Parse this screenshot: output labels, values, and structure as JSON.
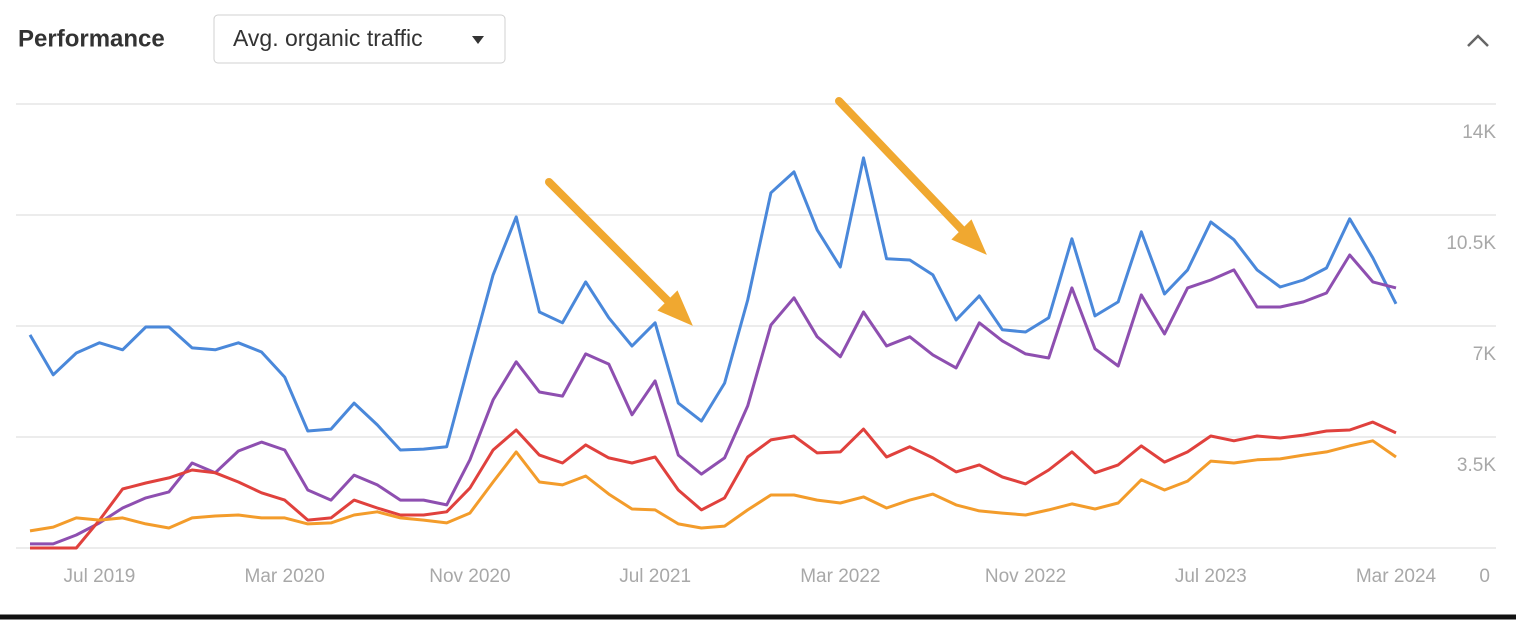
{
  "header": {
    "metric_dropdown": "Avg. organic traffic"
  },
  "chart_data": {
    "type": "line",
    "title": "Performance",
    "categories": [
      null,
      null,
      null,
      "Jul 2019",
      null,
      null,
      null,
      null,
      null,
      null,
      null,
      "Mar 2020",
      null,
      null,
      null,
      null,
      null,
      null,
      null,
      "Nov 2020",
      null,
      null,
      null,
      null,
      null,
      null,
      null,
      "Jul 2021",
      null,
      null,
      null,
      null,
      null,
      null,
      null,
      "Mar 2022",
      null,
      null,
      null,
      null,
      null,
      null,
      null,
      "Nov 2022",
      null,
      null,
      null,
      null,
      null,
      null,
      null,
      "Jul 2023",
      null,
      null,
      null,
      null,
      null,
      null,
      null,
      "Mar 2024"
    ],
    "ylim": [
      0,
      14000
    ],
    "yticks": [
      0,
      {
        "value": 3500,
        "label": "3.5K"
      },
      {
        "value": 7000,
        "label": "7K"
      },
      {
        "value": 10500,
        "label": "10.5K"
      },
      {
        "value": 14000,
        "label": "14K"
      }
    ],
    "grid": true,
    "series": [
      {
        "color": "#4a88da",
        "values": [
          6720,
          5460,
          6150,
          6470,
          6250,
          6970,
          6970,
          6310,
          6250,
          6470,
          6180,
          5390,
          3690,
          3750,
          4570,
          3880,
          3090,
          3120,
          3190,
          5930,
          8610,
          10440,
          7440,
          7100,
          8390,
          7260,
          6370,
          7100,
          4570,
          4000,
          5200,
          7820,
          11200,
          11860,
          10030,
          8860,
          12300,
          9120,
          9080,
          8610,
          7190,
          7950,
          6880,
          6810,
          7260,
          9750,
          7320,
          7760,
          9970,
          8010,
          8770,
          10280,
          9720,
          8770,
          8230,
          8450,
          8830,
          10380,
          9150,
          7700
        ]
      },
      {
        "color": "#8e4fb0",
        "values": [
          130,
          130,
          410,
          790,
          1260,
          1580,
          1770,
          2680,
          2370,
          3060,
          3340,
          3090,
          1830,
          1510,
          2300,
          1990,
          1510,
          1510,
          1360,
          2780,
          4670,
          5870,
          4920,
          4790,
          6120,
          5800,
          4200,
          5270,
          2930,
          2330,
          2840,
          4480,
          7030,
          7890,
          6660,
          6030,
          7440,
          6370,
          6660,
          6090,
          5680,
          7100,
          6530,
          6120,
          5990,
          8200,
          6280,
          5740,
          7980,
          6750,
          8200,
          8450,
          8770,
          7600,
          7600,
          7760,
          8040,
          9240,
          8390,
          8200
        ]
      },
      {
        "color": "#e0413d",
        "values": [
          0,
          0,
          0,
          880,
          1860,
          2050,
          2210,
          2460,
          2370,
          2080,
          1740,
          1510,
          880,
          950,
          1510,
          1260,
          1040,
          1040,
          1140,
          1890,
          3090,
          3720,
          2930,
          2680,
          3250,
          2840,
          2680,
          2870,
          1830,
          1200,
          1580,
          2870,
          3410,
          3530,
          3000,
          3030,
          3750,
          2870,
          3190,
          2840,
          2400,
          2620,
          2240,
          2020,
          2460,
          3030,
          2370,
          2620,
          3220,
          2710,
          3030,
          3530,
          3380,
          3530,
          3470,
          3560,
          3690,
          3720,
          3970,
          3630
        ]
      },
      {
        "color": "#f39c2b",
        "values": [
          540,
          660,
          950,
          880,
          950,
          760,
          630,
          950,
          1010,
          1040,
          950,
          950,
          760,
          790,
          1040,
          1140,
          950,
          880,
          790,
          1100,
          2080,
          3030,
          2080,
          1990,
          2270,
          1700,
          1230,
          1200,
          760,
          630,
          690,
          1200,
          1670,
          1670,
          1510,
          1420,
          1610,
          1260,
          1510,
          1700,
          1360,
          1170,
          1100,
          1040,
          1200,
          1390,
          1230,
          1420,
          2150,
          1830,
          2110,
          2740,
          2680,
          2780,
          2810,
          2930,
          3030,
          3220,
          3380,
          2870
        ]
      }
    ]
  }
}
